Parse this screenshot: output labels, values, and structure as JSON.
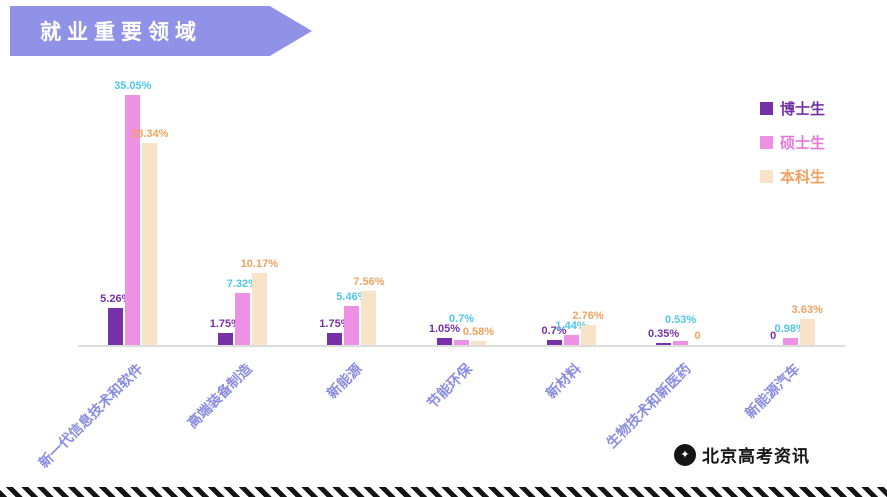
{
  "header": {
    "title": "就业重要领域"
  },
  "watermark": {
    "text": "北京高考资讯",
    "logo_icon": "✦"
  },
  "chart_data": {
    "type": "bar",
    "title": "就业重要领域",
    "categories": [
      "新一代信息技术和软件",
      "高端装备制造",
      "新能源",
      "节能环保",
      "新材料",
      "生物技术和新医药",
      "新能源汽车"
    ],
    "series": [
      {
        "name": "博士生",
        "bar_color": "#7631a9",
        "label_color": "#7631a9",
        "legend_text_color": "#7631a9",
        "values": [
          5.26,
          1.75,
          1.75,
          1.05,
          0.7,
          0.35,
          0
        ],
        "labels": [
          "5.26%",
          "1.75%",
          "1.75%",
          "1.05%",
          "0.7%",
          "0.35%",
          "0"
        ]
      },
      {
        "name": "硕士生",
        "bar_color": "#ee90e4",
        "label_color": "#4ec6e8",
        "legend_text_color": "#e878da",
        "values": [
          35.05,
          7.32,
          5.46,
          0.7,
          1.44,
          0.53,
          0.98
        ],
        "labels": [
          "35.05%",
          "7.32%",
          "5.46%",
          "0.7%",
          "1.44%",
          "0.53%",
          "0.98%"
        ]
      },
      {
        "name": "本科生",
        "bar_color": "#f8e3c9",
        "label_color": "#f0a160",
        "legend_text_color": "#f0a160",
        "values": [
          28.34,
          10.17,
          7.56,
          0.58,
          2.76,
          0,
          3.63
        ],
        "labels": [
          "28.34%",
          "10.17%",
          "7.56%",
          "0.58%",
          "2.76%",
          "0",
          "3.63%"
        ]
      }
    ],
    "ylim": [
      0,
      35.05
    ],
    "grid": false,
    "legend_position": "top-right",
    "axis_label_color": "#8a8ce0"
  }
}
